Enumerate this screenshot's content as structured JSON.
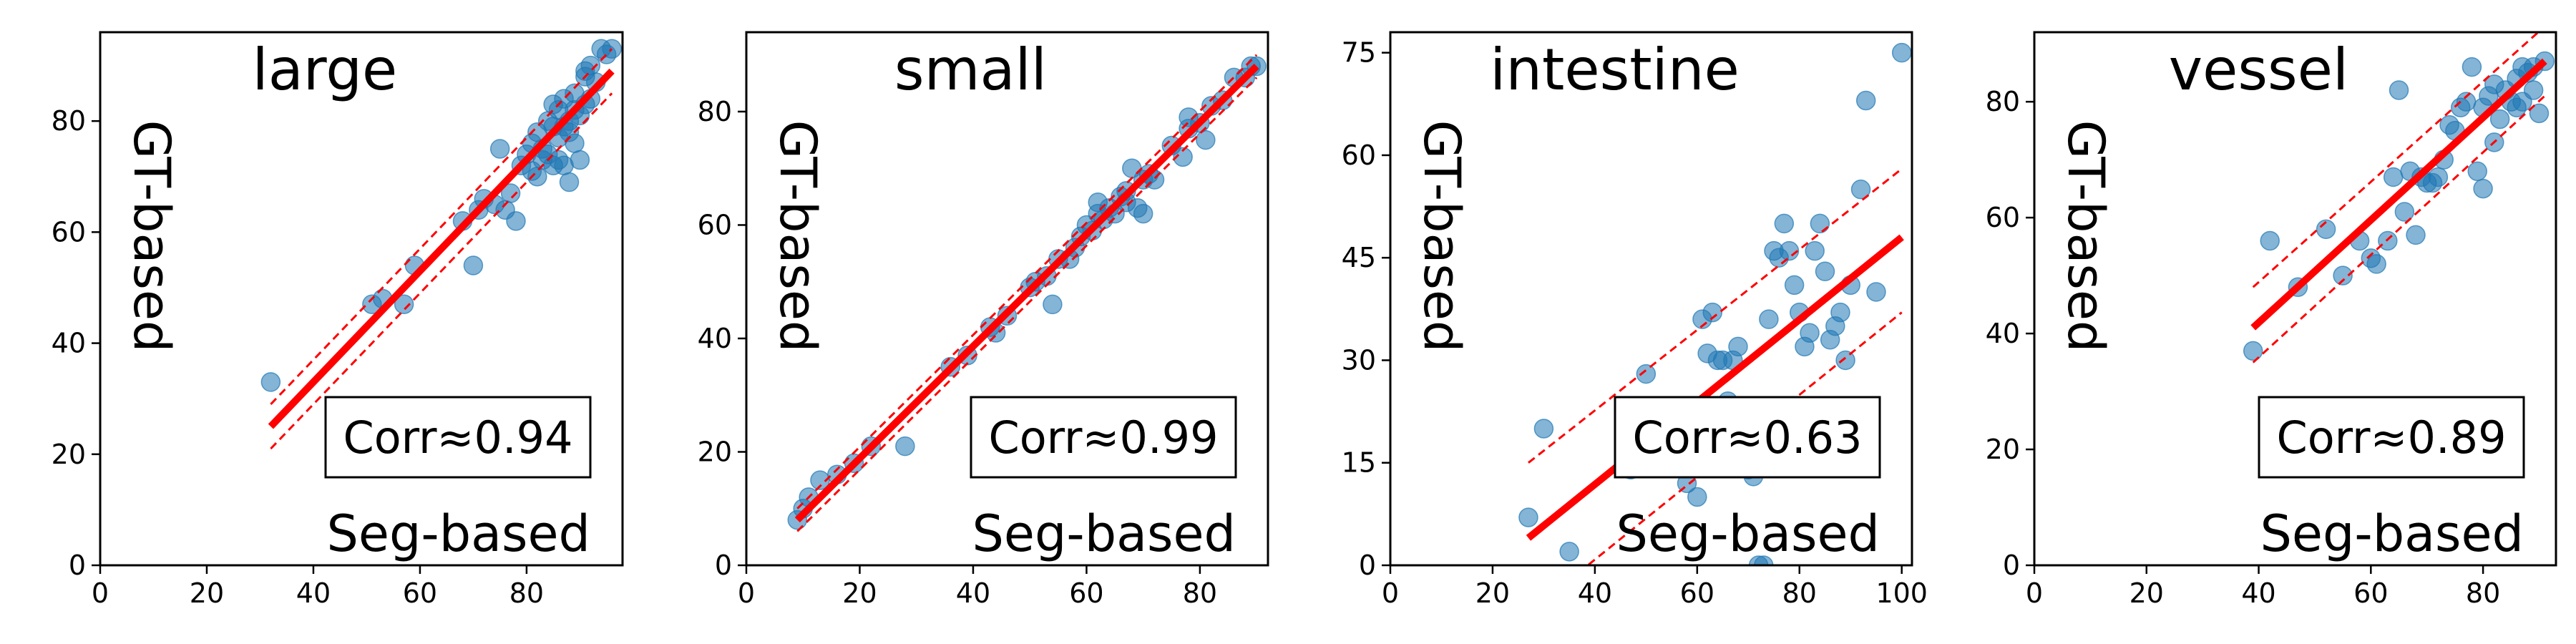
{
  "chart_data": [
    {
      "type": "scatter",
      "title": "large",
      "xlabel": "Seg-based",
      "ylabel": "GT-based",
      "annotation": "Corr≈0.94",
      "xlim": [
        0,
        98
      ],
      "ylim": [
        0,
        96
      ],
      "xticks": [
        0,
        20,
        40,
        60,
        80
      ],
      "yticks": [
        0,
        20,
        40,
        60,
        80
      ],
      "grid": false,
      "point_color": "#1f77b4",
      "fit_color": "#ff0000",
      "fit": {
        "x": [
          32,
          96
        ],
        "y": [
          25,
          89
        ]
      },
      "band": {
        "upper": {
          "x": [
            32,
            96
          ],
          "y": [
            29,
            93
          ]
        },
        "lower": {
          "x": [
            32,
            96
          ],
          "y": [
            21,
            85
          ]
        }
      },
      "points": [
        [
          32,
          33
        ],
        [
          51,
          47
        ],
        [
          53,
          48
        ],
        [
          57,
          47
        ],
        [
          59,
          54
        ],
        [
          68,
          62
        ],
        [
          70,
          54
        ],
        [
          71,
          64
        ],
        [
          72,
          66
        ],
        [
          74,
          65
        ],
        [
          75,
          75
        ],
        [
          76,
          64
        ],
        [
          77,
          67
        ],
        [
          78,
          62
        ],
        [
          79,
          72
        ],
        [
          80,
          74
        ],
        [
          81,
          76
        ],
        [
          81,
          71
        ],
        [
          82,
          70
        ],
        [
          82,
          78
        ],
        [
          83,
          75
        ],
        [
          83,
          73
        ],
        [
          84,
          80
        ],
        [
          84,
          74
        ],
        [
          85,
          79
        ],
        [
          85,
          72
        ],
        [
          85,
          83
        ],
        [
          86,
          77
        ],
        [
          86,
          82
        ],
        [
          86,
          73
        ],
        [
          87,
          79
        ],
        [
          87,
          72
        ],
        [
          87,
          84
        ],
        [
          88,
          80
        ],
        [
          88,
          78
        ],
        [
          88,
          69
        ],
        [
          89,
          82
        ],
        [
          89,
          76
        ],
        [
          89,
          85
        ],
        [
          90,
          81
        ],
        [
          90,
          73
        ],
        [
          91,
          89
        ],
        [
          91,
          88
        ],
        [
          91,
          83
        ],
        [
          92,
          90
        ],
        [
          92,
          84
        ],
        [
          93,
          87
        ],
        [
          94,
          93
        ],
        [
          95,
          92
        ],
        [
          96,
          93
        ]
      ]
    },
    {
      "type": "scatter",
      "title": "small",
      "xlabel": "Seg-based",
      "ylabel": "GT-based",
      "annotation": "Corr≈0.99",
      "xlim": [
        0,
        92
      ],
      "ylim": [
        0,
        94
      ],
      "xticks": [
        0,
        20,
        40,
        60,
        80
      ],
      "yticks": [
        0,
        20,
        40,
        60,
        80
      ],
      "grid": false,
      "point_color": "#1f77b4",
      "fit_color": "#ff0000",
      "fit": {
        "x": [
          9,
          90
        ],
        "y": [
          8,
          88
        ]
      },
      "band": {
        "upper": {
          "x": [
            9,
            90
          ],
          "y": [
            10,
            90
          ]
        },
        "lower": {
          "x": [
            9,
            90
          ],
          "y": [
            6,
            86
          ]
        }
      },
      "points": [
        [
          9,
          8
        ],
        [
          10,
          10
        ],
        [
          11,
          12
        ],
        [
          13,
          15
        ],
        [
          16,
          16
        ],
        [
          19,
          18
        ],
        [
          22,
          21
        ],
        [
          28,
          21
        ],
        [
          36,
          35
        ],
        [
          39,
          37
        ],
        [
          43,
          42
        ],
        [
          44,
          41
        ],
        [
          46,
          44
        ],
        [
          50,
          49
        ],
        [
          51,
          50
        ],
        [
          53,
          51
        ],
        [
          54,
          46
        ],
        [
          55,
          54
        ],
        [
          57,
          54
        ],
        [
          58,
          56
        ],
        [
          59,
          58
        ],
        [
          60,
          60
        ],
        [
          61,
          59
        ],
        [
          62,
          64
        ],
        [
          62,
          62
        ],
        [
          63,
          61
        ],
        [
          64,
          63
        ],
        [
          65,
          62
        ],
        [
          66,
          65
        ],
        [
          67,
          64
        ],
        [
          67,
          66
        ],
        [
          68,
          70
        ],
        [
          69,
          63
        ],
        [
          70,
          62
        ],
        [
          70,
          68
        ],
        [
          71,
          69
        ],
        [
          72,
          68
        ],
        [
          75,
          74
        ],
        [
          77,
          72
        ],
        [
          78,
          77
        ],
        [
          78,
          79
        ],
        [
          80,
          78
        ],
        [
          81,
          75
        ],
        [
          82,
          81
        ],
        [
          84,
          82
        ],
        [
          86,
          86
        ],
        [
          88,
          86
        ],
        [
          89,
          88
        ],
        [
          90,
          88
        ]
      ]
    },
    {
      "type": "scatter",
      "title": "intestine",
      "xlabel": "Seg-based",
      "ylabel": "GT-based",
      "annotation": "Corr≈0.63",
      "xlim": [
        0,
        102
      ],
      "ylim": [
        0,
        78
      ],
      "xticks": [
        0,
        20,
        40,
        60,
        80,
        100
      ],
      "yticks": [
        0,
        15,
        30,
        45,
        60,
        75
      ],
      "grid": false,
      "point_color": "#1f77b4",
      "fit_color": "#ff0000",
      "fit": {
        "x": [
          27,
          100
        ],
        "y": [
          4,
          48
        ]
      },
      "band": {
        "upper": {
          "x": [
            27,
            100
          ],
          "y": [
            15,
            58
          ]
        },
        "lower": {
          "x": [
            27,
            100
          ],
          "y": [
            -7,
            37
          ]
        }
      },
      "points": [
        [
          27,
          7
        ],
        [
          30,
          20
        ],
        [
          35,
          2
        ],
        [
          47,
          14
        ],
        [
          50,
          28
        ],
        [
          58,
          12
        ],
        [
          60,
          10
        ],
        [
          61,
          36
        ],
        [
          62,
          31
        ],
        [
          63,
          37
        ],
        [
          64,
          30
        ],
        [
          65,
          30
        ],
        [
          66,
          24
        ],
        [
          67,
          30
        ],
        [
          68,
          32
        ],
        [
          70,
          14
        ],
        [
          71,
          13
        ],
        [
          72,
          0
        ],
        [
          73,
          0
        ],
        [
          74,
          36
        ],
        [
          75,
          46
        ],
        [
          76,
          45
        ],
        [
          77,
          50
        ],
        [
          78,
          46
        ],
        [
          79,
          41
        ],
        [
          80,
          37
        ],
        [
          81,
          32
        ],
        [
          82,
          34
        ],
        [
          83,
          46
        ],
        [
          84,
          50
        ],
        [
          85,
          43
        ],
        [
          86,
          33
        ],
        [
          87,
          35
        ],
        [
          88,
          37
        ],
        [
          89,
          30
        ],
        [
          90,
          41
        ],
        [
          92,
          55
        ],
        [
          93,
          68
        ],
        [
          95,
          40
        ],
        [
          100,
          75
        ]
      ]
    },
    {
      "type": "scatter",
      "title": "vessel",
      "xlabel": "Seg-based",
      "ylabel": "GT-based",
      "annotation": "Corr≈0.89",
      "xlim": [
        0,
        93
      ],
      "ylim": [
        0,
        92
      ],
      "xticks": [
        0,
        20,
        40,
        60,
        80
      ],
      "yticks": [
        0,
        20,
        40,
        60,
        80
      ],
      "grid": false,
      "point_color": "#1f77b4",
      "fit_color": "#ff0000",
      "fit": {
        "x": [
          39,
          91
        ],
        "y": [
          41,
          87
        ]
      },
      "band": {
        "upper": {
          "x": [
            39,
            91
          ],
          "y": [
            48,
            93
          ]
        },
        "lower": {
          "x": [
            39,
            91
          ],
          "y": [
            35,
            81
          ]
        }
      },
      "points": [
        [
          39,
          37
        ],
        [
          42,
          56
        ],
        [
          47,
          48
        ],
        [
          52,
          58
        ],
        [
          55,
          50
        ],
        [
          58,
          56
        ],
        [
          60,
          53
        ],
        [
          61,
          52
        ],
        [
          63,
          56
        ],
        [
          64,
          67
        ],
        [
          65,
          82
        ],
        [
          66,
          61
        ],
        [
          67,
          68
        ],
        [
          68,
          57
        ],
        [
          69,
          67
        ],
        [
          70,
          66
        ],
        [
          71,
          66
        ],
        [
          72,
          67
        ],
        [
          73,
          70
        ],
        [
          74,
          76
        ],
        [
          75,
          75
        ],
        [
          76,
          79
        ],
        [
          77,
          80
        ],
        [
          78,
          86
        ],
        [
          79,
          68
        ],
        [
          80,
          65
        ],
        [
          80,
          79
        ],
        [
          81,
          81
        ],
        [
          82,
          73
        ],
        [
          82,
          83
        ],
        [
          83,
          77
        ],
        [
          84,
          82
        ],
        [
          85,
          80
        ],
        [
          86,
          84
        ],
        [
          86,
          79
        ],
        [
          87,
          86
        ],
        [
          87,
          80
        ],
        [
          88,
          85
        ],
        [
          89,
          82
        ],
        [
          89,
          86
        ],
        [
          90,
          78
        ],
        [
          91,
          87
        ]
      ]
    }
  ]
}
